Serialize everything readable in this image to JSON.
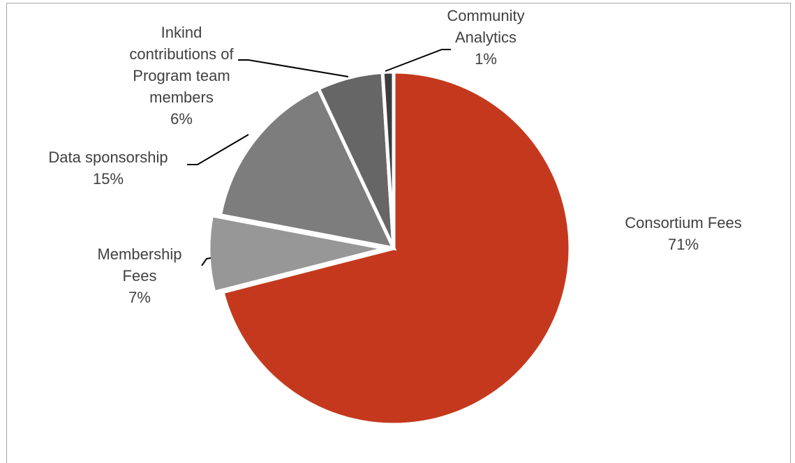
{
  "chart_data": {
    "type": "pie",
    "title": "",
    "legend": "none",
    "slices": [
      {
        "label_lines": [
          "Consortium Fees"
        ],
        "percent_label": "71%",
        "value": 71,
        "color": "#c4391d"
      },
      {
        "label_lines": [
          "Membership",
          "Fees"
        ],
        "percent_label": "7%",
        "value": 7,
        "color": "#979797"
      },
      {
        "label_lines": [
          "Data sponsorship"
        ],
        "percent_label": "15%",
        "value": 15,
        "color": "#7d7d7d"
      },
      {
        "label_lines": [
          "Inkind",
          "contributions of",
          "Program team",
          "members"
        ],
        "percent_label": "6%",
        "value": 6,
        "color": "#666666"
      },
      {
        "label_lines": [
          "Community",
          "Analytics"
        ],
        "percent_label": "1%",
        "value": 1,
        "color": "#3d3d3d"
      }
    ]
  }
}
